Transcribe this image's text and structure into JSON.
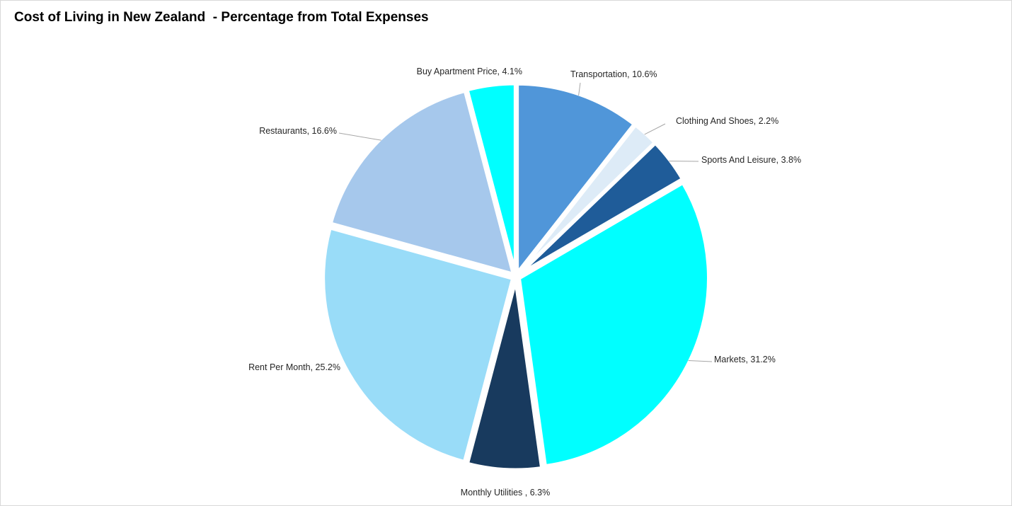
{
  "chart_data": {
    "type": "pie",
    "title": "Cost of Living in New Zealand  - Percentage from Total Expenses",
    "slices": [
      {
        "label": "Transportation",
        "value": 10.6,
        "color": "#5096D9",
        "data_label": "Transportation, 10.6%"
      },
      {
        "label": "Clothing And Shoes",
        "value": 2.2,
        "color": "#DDEBF7",
        "data_label": "Clothing And Shoes, 2.2%"
      },
      {
        "label": "Sports And Leisure",
        "value": 3.8,
        "color": "#1F5C99",
        "data_label": "Sports And Leisure, 3.8%"
      },
      {
        "label": "Markets",
        "value": 31.2,
        "color": "#00FFFF",
        "data_label": "Markets, 31.2%"
      },
      {
        "label": "Monthly Utilities",
        "value": 6.3,
        "color": "#183A5E",
        "data_label": "Monthly Utilities , 6.3%"
      },
      {
        "label": "Rent Per Month",
        "value": 25.2,
        "color": "#99DCF8",
        "data_label": "Rent Per Month, 25.2%"
      },
      {
        "label": "Restaurants",
        "value": 16.6,
        "color": "#A6C8EC",
        "data_label": "Restaurants, 16.6%"
      },
      {
        "label": "Buy Apartment Price",
        "value": 4.1,
        "color": "#00FFFF",
        "data_label": "Buy Apartment Price, 4.1%"
      }
    ],
    "legend": "none",
    "data_labels": "outside with leader lines"
  }
}
